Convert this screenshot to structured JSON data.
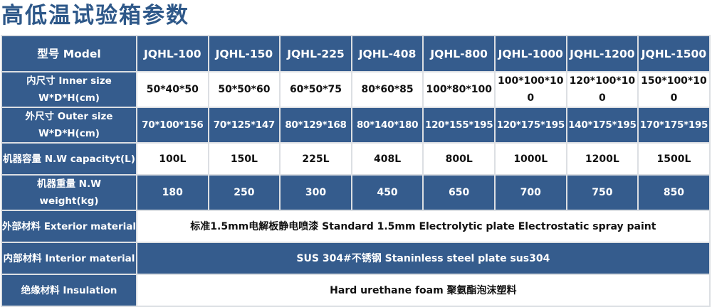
{
  "title": "高低温试验箱参数",
  "colors": {
    "header_blue": "#355c8d",
    "title_blue": "#2e5889"
  },
  "table": {
    "model_label": "型号 Model",
    "models": [
      "JQHL-100",
      "JQHL-150",
      "JQHL-225",
      "JQHL-408",
      "JQHL-800",
      "JQHL-1000",
      "JQHL-1200",
      "JQHL-1500"
    ],
    "inner_label_1": "内尺寸 Inner size",
    "inner_label_2": "W*D*H(cm)",
    "inner": [
      "50*40*50",
      "50*50*60",
      "60*50*75",
      "80*60*85",
      "100*80*100",
      "100*100*100",
      "120*100*100",
      "150*100*100"
    ],
    "outer_label_1": "外尺寸 Outer size",
    "outer_label_2": "W*D*H(cm)",
    "outer": [
      "70*100*156",
      "70*125*147",
      "80*129*168",
      "80*140*180",
      "120*155*195",
      "120*175*195",
      "140*175*195",
      "170*175*195"
    ],
    "capacity_label": "机器容量 N.W capacityt(L)",
    "capacity": [
      "100L",
      "150L",
      "225L",
      "408L",
      "800L",
      "1000L",
      "1200L",
      "1500L"
    ],
    "weight_label_1": "机器重量 N.W",
    "weight_label_2": "weight(kg)",
    "weight": [
      "180",
      "250",
      "300",
      "450",
      "650",
      "700",
      "750",
      "850"
    ],
    "exterior_label": "外部材料 Exterior material",
    "exterior": "标准1.5mm电解板静电喷漆  Standard 1.5mm Electrolytic plate Electrostatic spray paint",
    "interior_label": "内部材料 Interior material",
    "interior": "SUS 304#不锈钢 Staninless steel plate sus304",
    "insulation_label": "绝缘材料 Insulation",
    "insulation": "Hard urethane foam 聚氨酯泡沫塑料"
  }
}
